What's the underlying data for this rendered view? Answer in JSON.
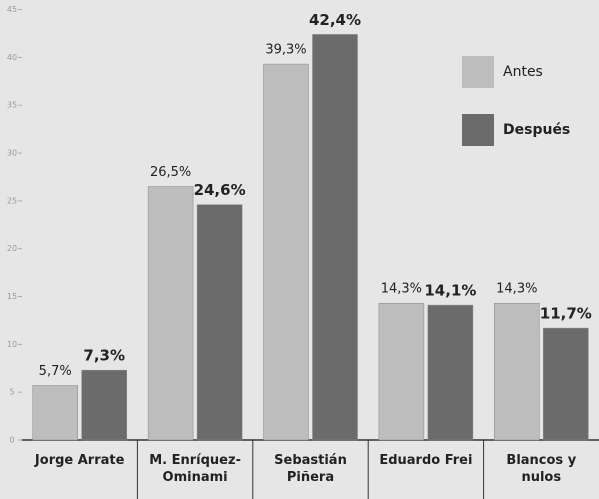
{
  "chart_data": {
    "type": "bar",
    "categories": [
      "Jorge Arrate",
      "M. Enríquez-Ominami",
      "Sebastián Piñera",
      "Eduardo Frei",
      "Blancos y nulos"
    ],
    "series": [
      {
        "name": "Antes",
        "color": "#bdbdbd",
        "values": [
          5.7,
          26.5,
          39.3,
          14.3,
          14.3
        ],
        "value_labels": [
          "5,7%",
          "26,5%",
          "39,3%",
          "14,3%",
          "14,3%"
        ]
      },
      {
        "name": "Después",
        "color": "#6b6b6b",
        "values": [
          7.3,
          24.6,
          42.4,
          14.1,
          11.7
        ],
        "value_labels": [
          "7,3%",
          "24,6%",
          "42,4%",
          "14,1%",
          "11,7%"
        ]
      }
    ],
    "ylim": [
      0,
      46
    ],
    "yticks": [
      0,
      5,
      10,
      15,
      20,
      25,
      30,
      35,
      40,
      45
    ],
    "legend": "top-right"
  }
}
